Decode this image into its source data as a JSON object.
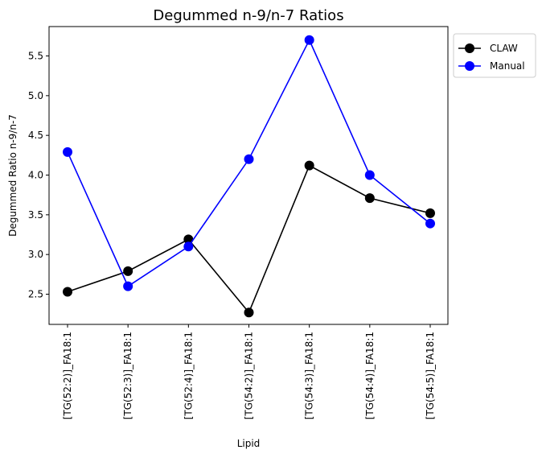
{
  "chart_data": {
    "type": "line",
    "title": "Degummed n-9/n-7 Ratios",
    "xlabel": "Lipid",
    "ylabel": "Degummed Ratio n-9/n-7",
    "categories": [
      "[TG(52:2)]_FA18:1",
      "[TG(52:3)]_FA18:1",
      "[TG(52:4)]_FA18:1",
      "[TG(54:2)]_FA18:1",
      "[TG(54:3)]_FA18:1",
      "[TG(54:4)]_FA18:1",
      "[TG(54:5)]_FA18:1"
    ],
    "series": [
      {
        "name": "CLAW",
        "color": "#000000",
        "values": [
          2.53,
          2.79,
          3.19,
          2.27,
          4.12,
          3.71,
          3.52
        ]
      },
      {
        "name": "Manual",
        "color": "#0000ff",
        "values": [
          4.29,
          2.6,
          3.1,
          4.2,
          5.7,
          4.0,
          3.39
        ]
      }
    ],
    "ylim": [
      2.12,
      5.87
    ],
    "yticks": [
      "2.5",
      "3.0",
      "3.5",
      "4.0",
      "4.5",
      "5.0",
      "5.5"
    ],
    "grid": false,
    "legend_position": "outside-upper-right",
    "marker": "circle"
  }
}
